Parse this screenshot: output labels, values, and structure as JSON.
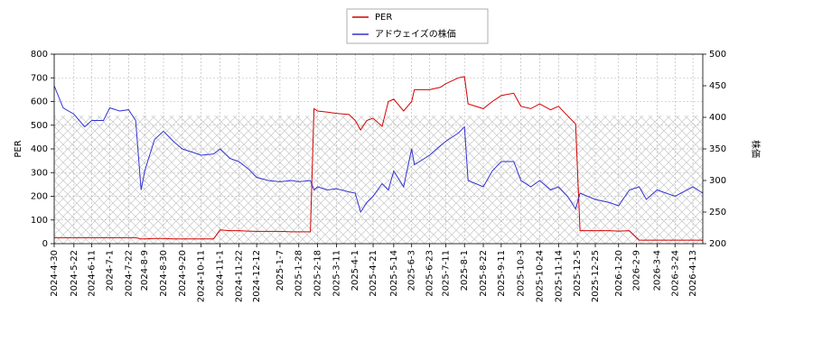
{
  "chart_data": {
    "type": "line",
    "x": [
      "2024-4-30",
      "2024-5-10",
      "2024-5-22",
      "2024-6-3",
      "2024-6-11",
      "2024-6-24",
      "2024-7-1",
      "2024-7-12",
      "2024-7-22",
      "2024-7-30",
      "2024-8-5",
      "2024-8-9",
      "2024-8-20",
      "2024-8-30",
      "2024-9-10",
      "2024-9-20",
      "2024-10-1",
      "2024-10-11",
      "2024-10-25",
      "2024-11-1",
      "2024-11-12",
      "2024-11-22",
      "2024-12-3",
      "2024-12-12",
      "2024-12-25",
      "2025-1-7",
      "2025-1-20",
      "2025-1-28",
      "2025-2-10",
      "2025-2-14",
      "2025-2-18",
      "2025-3-1",
      "2025-3-11",
      "2025-3-25",
      "2025-4-1",
      "2025-4-7",
      "2025-4-14",
      "2025-4-21",
      "2025-5-1",
      "2025-5-8",
      "2025-5-14",
      "2025-5-25",
      "2025-6-3",
      "2025-6-6",
      "2025-6-23",
      "2025-7-5",
      "2025-7-11",
      "2025-7-25",
      "2025-8-1",
      "2025-8-5",
      "2025-8-22",
      "2025-9-1",
      "2025-9-11",
      "2025-9-25",
      "2025-10-3",
      "2025-10-14",
      "2025-10-24",
      "2025-11-5",
      "2025-11-14",
      "2025-11-24",
      "2025-12-3",
      "2025-12-8",
      "2025-12-25",
      "2026-1-10",
      "2026-1-20",
      "2026-2-1",
      "2026-2-12",
      "2026-2-20",
      "2026-3-4",
      "2026-3-24",
      "2026-4-13",
      "2026-4-24"
    ],
    "series": [
      {
        "name": "PER",
        "color": "#d40000",
        "axis": "y",
        "values": [
          25,
          25,
          25,
          25,
          25,
          25,
          25,
          25,
          25,
          25,
          20,
          20,
          22,
          22,
          20,
          20,
          20,
          20,
          20,
          58,
          55,
          55,
          53,
          52,
          52,
          52,
          50,
          50,
          50,
          570,
          560,
          555,
          550,
          545,
          520,
          480,
          520,
          530,
          495,
          600,
          610,
          560,
          600,
          650,
          650,
          660,
          675,
          700,
          705,
          590,
          570,
          600,
          625,
          635,
          580,
          570,
          590,
          565,
          580,
          540,
          505,
          55,
          55,
          55,
          53,
          55,
          15,
          15,
          15,
          15,
          15,
          15
        ]
      },
      {
        "name": "アドウェイズの株価",
        "color": "#3232d0",
        "axis": "y2",
        "values": [
          450,
          415,
          405,
          385,
          395,
          395,
          415,
          410,
          412,
          395,
          285,
          315,
          365,
          378,
          362,
          350,
          345,
          340,
          342,
          350,
          335,
          330,
          318,
          305,
          300,
          298,
          300,
          298,
          300,
          285,
          290,
          285,
          287,
          282,
          280,
          250,
          265,
          275,
          295,
          285,
          315,
          290,
          350,
          325,
          340,
          355,
          362,
          375,
          385,
          300,
          290,
          315,
          330,
          330,
          300,
          290,
          300,
          285,
          290,
          275,
          255,
          280,
          270,
          265,
          260,
          285,
          290,
          270,
          285,
          275,
          290,
          280
        ]
      }
    ],
    "xlim": [
      "2024-4-30",
      "2026-4-24"
    ],
    "xticks": [
      "2024-4-30",
      "2024-5-22",
      "2024-6-11",
      "2024-7-1",
      "2024-7-22",
      "2024-8-9",
      "2024-8-30",
      "2024-9-20",
      "2024-10-11",
      "2024-11-1",
      "2024-11-22",
      "2024-12-12",
      "2025-1-7",
      "2025-1-28",
      "2025-2-18",
      "2025-3-11",
      "2025-4-1",
      "2025-4-21",
      "2025-5-14",
      "2025-6-3",
      "2025-6-23",
      "2025-7-11",
      "2025-8-1",
      "2025-8-22",
      "2025-9-11",
      "2025-10-3",
      "2025-10-24",
      "2025-11-14",
      "2025-12-5",
      "2025-12-25",
      "2026-1-20",
      "2026-2-9",
      "2026-3-4",
      "2026-3-24",
      "2026-4-13"
    ],
    "ylabel": "PER",
    "ylim": [
      0,
      800
    ],
    "yticks": [
      0,
      100,
      200,
      300,
      400,
      500,
      600,
      700,
      800
    ],
    "y2label": "株価",
    "y2lim": [
      200,
      500
    ],
    "y2ticks": [
      200,
      250,
      300,
      350,
      400,
      450,
      500
    ],
    "grid": true,
    "legend": "top"
  }
}
